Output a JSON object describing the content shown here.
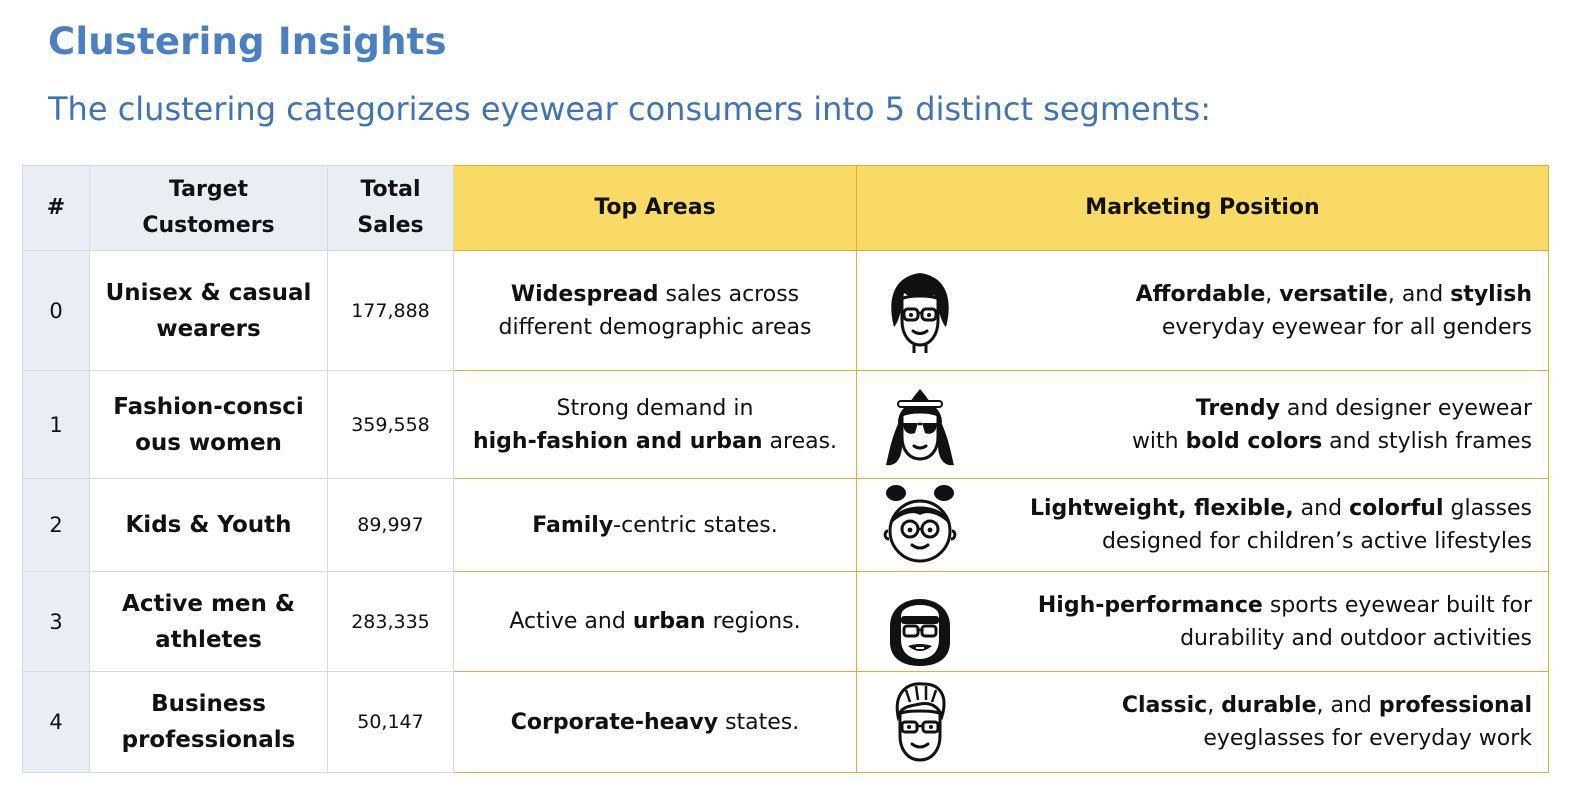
{
  "page": {
    "title": "Clustering Insights",
    "subtitle": "The clustering categorizes eyewear consumers into 5 distinct segments:"
  },
  "colors": {
    "heading_blue": "#4a7fc1",
    "header_yellow": "#f8da65",
    "border_orange": "#efa73a",
    "index_grey": "#e9eef4"
  },
  "table": {
    "headers": {
      "index": "#",
      "customers_line1": "Target",
      "customers_line2": "Customers",
      "sales_line1": "Total",
      "sales_line2": "Sales",
      "areas": "Top Areas",
      "marketing": "Marketing Position"
    },
    "rows": [
      {
        "index": "0",
        "customers_line1": "Unisex & casual",
        "customers_line2": "wearers",
        "sales": "177,888",
        "area": {
          "b1": "Widespread",
          "t1": " sales across",
          "t2": "different demographic areas"
        },
        "icon": "woman-glasses-icon",
        "marketing": {
          "b1": "Affordable",
          "t1": ", ",
          "b2": "versatile",
          "t2": ", and ",
          "b3": "stylish",
          "t3": "everyday eyewear for all genders"
        }
      },
      {
        "index": "1",
        "customers_line1": "Fashion-consci",
        "customers_line2": "ous women",
        "sales": "359,558",
        "area": {
          "t1": "Strong demand in",
          "b1": "high-fashion and urban",
          "t2": " areas."
        },
        "icon": "fashion-woman-sunglasses-icon",
        "marketing": {
          "b1": "Trendy",
          "t1": " and designer eyewear",
          "t2": "with ",
          "b2": "bold colors",
          "t3": " and stylish frames"
        }
      },
      {
        "index": "2",
        "customers_line1": "Kids & Youth",
        "sales": "89,997",
        "area": {
          "b1": "Family",
          "t1": "-centric states."
        },
        "icon": "kid-glasses-icon",
        "marketing": {
          "b1": "Lightweight, flexible,",
          "t1": " and ",
          "b2": "colorful",
          "t2": " glasses",
          "t3": "designed for children’s active lifestyles"
        }
      },
      {
        "index": "3",
        "customers_line1": "Active men &",
        "customers_line2": "athletes",
        "sales": "283,335",
        "area": {
          "t1": "Active and ",
          "b1": "urban",
          "t2": " regions."
        },
        "icon": "athlete-helmet-icon",
        "marketing": {
          "b1": "High-performance",
          "t1": " sports eyewear built for",
          "t2": "durability and outdoor activities"
        }
      },
      {
        "index": "4",
        "customers_line1": "Business",
        "customers_line2": "professionals",
        "sales": "50,147",
        "area": {
          "b1": "Corporate-heavy",
          "t1": " states."
        },
        "icon": "businessman-glasses-icon",
        "marketing": {
          "b1": "Classic",
          "t1": ", ",
          "b2": "durable",
          "t2": ", and ",
          "b3": "professional",
          "t3": "eyeglasses for everyday work"
        }
      }
    ]
  }
}
